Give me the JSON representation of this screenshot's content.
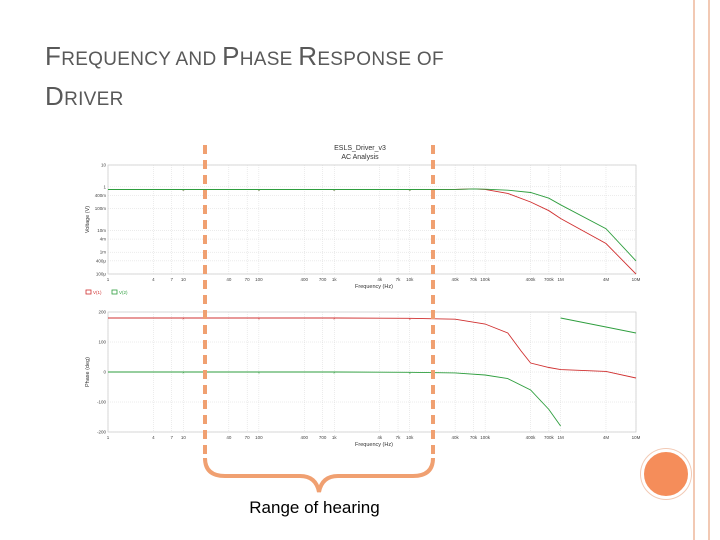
{
  "slide": {
    "title_parts": [
      {
        "cap": "F",
        "rest": "REQUENCY AND "
      },
      {
        "cap": "P",
        "rest": "HASE "
      },
      {
        "cap": "R",
        "rest": "ESPONSE OF"
      }
    ],
    "title_line2": {
      "cap": "D",
      "rest": "RIVER"
    },
    "hearing_label": "Range of hearing",
    "accent_color": "#f58d5a",
    "bracket_color": "#f0a071"
  },
  "chart_data": [
    {
      "type": "line",
      "title": "ESLS_Driver_v3",
      "subtitle": "AC Analysis",
      "xlabel": "Frequency (Hz)",
      "ylabel": "Voltage (V)",
      "x_scale": "log",
      "xlim": [
        1,
        10000000
      ],
      "ylim": [
        100,
        10
      ],
      "y_scale": "log",
      "x_tick_labels": [
        "1",
        "4",
        "7",
        "10",
        "40",
        "70",
        "100",
        "400",
        "700",
        "1k",
        "4k",
        "7k",
        "10k",
        "40k",
        "70k",
        "100k",
        "400k",
        "700k",
        "1M",
        "4M",
        "10M"
      ],
      "y_tick_labels": [
        "10",
        "1",
        "400m",
        "100m",
        "10m",
        "4m",
        "1m",
        "400μ",
        "100μ"
      ],
      "grid": true,
      "series": [
        {
          "color": "#d03030",
          "x": [
            1,
            10,
            100,
            1000,
            10000,
            40000,
            70000,
            100000,
            200000,
            400000,
            700000,
            1000000,
            4000000,
            10000000
          ],
          "y": [
            0.75,
            0.75,
            0.75,
            0.75,
            0.75,
            0.76,
            0.8,
            0.76,
            0.5,
            0.2,
            0.08,
            0.035,
            0.0025,
            0.0001
          ]
        },
        {
          "color": "#2e9e3e",
          "x": [
            1,
            10,
            100,
            1000,
            10000,
            40000,
            70000,
            100000,
            200000,
            400000,
            700000,
            1000000,
            4000000,
            10000000
          ],
          "y": [
            0.75,
            0.75,
            0.75,
            0.75,
            0.75,
            0.76,
            0.8,
            0.78,
            0.7,
            0.55,
            0.3,
            0.15,
            0.012,
            0.0004
          ]
        }
      ]
    },
    {
      "type": "line",
      "xlabel": "Frequency (Hz)",
      "ylabel": "Phase (deg)",
      "x_scale": "log",
      "xlim": [
        1,
        10000000
      ],
      "ylim": [
        -200,
        200
      ],
      "x_tick_labels": [
        "1",
        "4",
        "7",
        "10",
        "40",
        "70",
        "100",
        "400",
        "700",
        "1k",
        "4k",
        "7k",
        "10k",
        "40k",
        "70k",
        "100k",
        "400k",
        "700k",
        "1M",
        "4M",
        "10M"
      ],
      "y_tick_labels": [
        "200",
        "100",
        "0",
        "-100",
        "-200"
      ],
      "grid": true,
      "legend_placement": "top-left",
      "legend_labels": [
        "V(1)",
        "V(2)"
      ],
      "series": [
        {
          "color": "#d03030",
          "x": [
            1,
            10,
            100,
            1000,
            10000,
            40000,
            100000,
            200000,
            300000,
            400000,
            700000,
            1000000,
            4000000,
            10000000
          ],
          "y": [
            180,
            180,
            180,
            180,
            179,
            176,
            160,
            130,
            70,
            30,
            15,
            8,
            2,
            -20
          ]
        },
        {
          "color": "#2e9e3e",
          "x": [
            1,
            10,
            100,
            1000,
            10000,
            40000,
            100000,
            200000,
            400000,
            700000,
            1000000
          ],
          "y": [
            0,
            0,
            0,
            0,
            -1,
            -3,
            -10,
            -22,
            -60,
            -125,
            -180
          ]
        },
        {
          "color": "#2e9e3e",
          "x": [
            1000000,
            4000000,
            10000000
          ],
          "y": [
            180,
            150,
            130
          ]
        }
      ]
    }
  ]
}
